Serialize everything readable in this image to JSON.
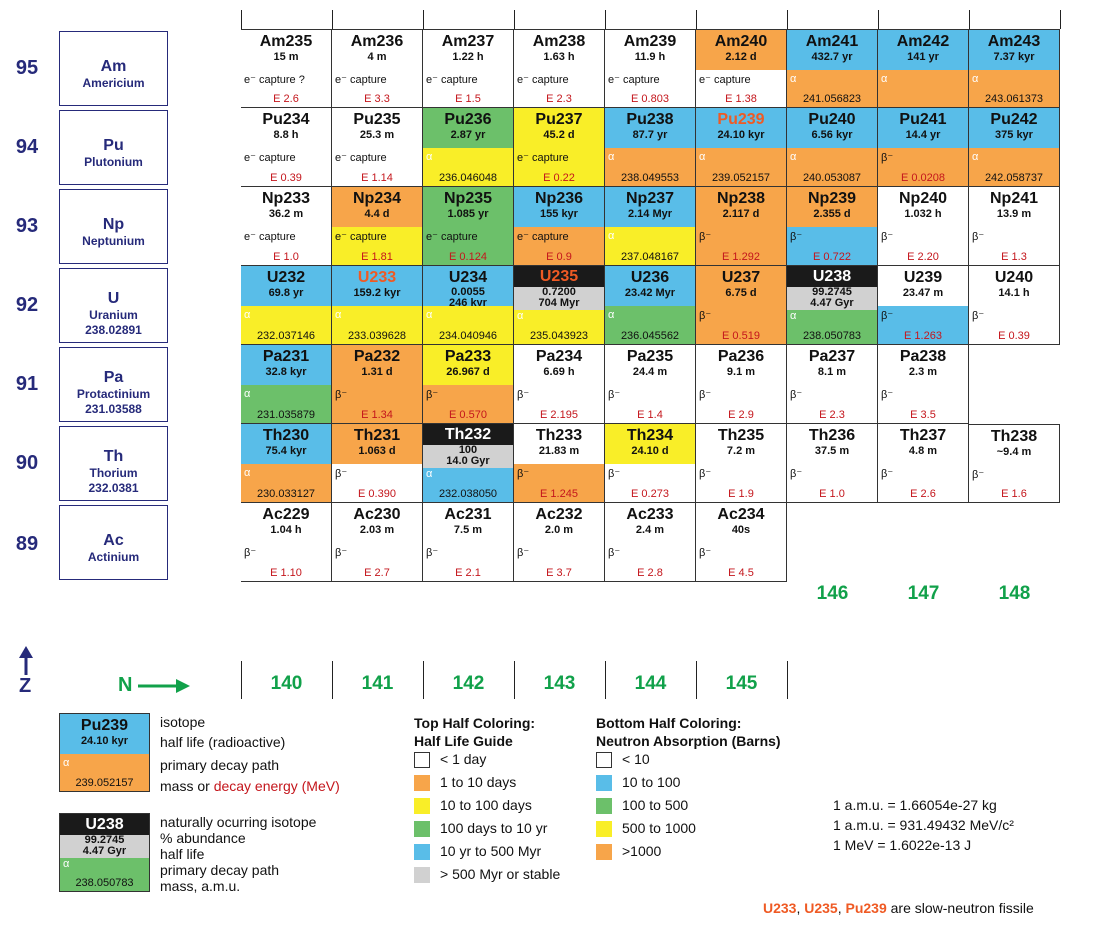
{
  "colors": {
    "white": "#ffffff",
    "orange": "#f7a54a",
    "yellow": "#f9ee28",
    "green": "#6cc06a",
    "blue": "#59bde8",
    "gray": "#d1d1d1",
    "black": "#1a1a1a",
    "fissile": "#ef5a24",
    "energy": "#c4161c",
    "n_label": "#11a14a",
    "element_blue": "#262a7a"
  },
  "axes": {
    "z_label": "Z",
    "n_label": "N"
  },
  "n_values": [
    "140",
    "141",
    "142",
    "143",
    "144",
    "145",
    "146",
    "147",
    "148"
  ],
  "elements": [
    {
      "z": "95",
      "symbol": "Am",
      "name": "Americium",
      "mass": ""
    },
    {
      "z": "94",
      "symbol": "Pu",
      "name": "Plutonium",
      "mass": ""
    },
    {
      "z": "93",
      "symbol": "Np",
      "name": "Neptunium",
      "mass": ""
    },
    {
      "z": "92",
      "symbol": "U",
      "name": "Uranium",
      "mass": "238.02891"
    },
    {
      "z": "91",
      "symbol": "Pa",
      "name": "Protactinium",
      "mass": "231.03588"
    },
    {
      "z": "90",
      "symbol": "Th",
      "name": "Thorium",
      "mass": "232.0381"
    },
    {
      "z": "89",
      "symbol": "Ac",
      "name": "Actinium",
      "mass": ""
    }
  ],
  "rows": [
    [
      {
        "col": 0,
        "name": "Am235",
        "hl": "15 m",
        "top": "white",
        "bot": "white",
        "decay": "e⁻ capture ?",
        "mass": "E 2.6",
        "energy": true
      },
      {
        "col": 1,
        "name": "Am236",
        "hl": "4 m",
        "top": "white",
        "bot": "white",
        "decay": "e⁻ capture",
        "mass": "E 3.3",
        "energy": true
      },
      {
        "col": 2,
        "name": "Am237",
        "hl": "1.22 h",
        "top": "white",
        "bot": "white",
        "decay": "e⁻ capture",
        "mass": "E 1.5",
        "energy": true
      },
      {
        "col": 3,
        "name": "Am238",
        "hl": "1.63 h",
        "top": "white",
        "bot": "white",
        "decay": "e⁻ capture",
        "mass": "E 2.3",
        "energy": true
      },
      {
        "col": 4,
        "name": "Am239",
        "hl": "11.9 h",
        "top": "white",
        "bot": "white",
        "decay": "e⁻ capture",
        "mass": "E 0.803",
        "energy": true
      },
      {
        "col": 5,
        "name": "Am240",
        "hl": "2.12 d",
        "top": "orange",
        "bot": "white",
        "decay": "e⁻ capture",
        "mass": "E 1.38",
        "energy": true
      },
      {
        "col": 6,
        "name": "Am241",
        "hl": "432.7 yr",
        "top": "blue",
        "bot": "orange",
        "decay": "α",
        "mass": "241.056823",
        "energy": false
      },
      {
        "col": 7,
        "name": "Am242",
        "hl": "141 yr",
        "top": "blue",
        "bot": "orange",
        "decay": "α",
        "mass": "",
        "energy": false
      },
      {
        "col": 8,
        "name": "Am243",
        "hl": "7.37 kyr",
        "top": "blue",
        "bot": "orange",
        "decay": "α",
        "mass": "243.061373",
        "energy": false
      }
    ],
    [
      {
        "col": 0,
        "name": "Pu234",
        "hl": "8.8 h",
        "top": "white",
        "bot": "white",
        "decay": "e⁻ capture",
        "mass": "E 0.39",
        "energy": true
      },
      {
        "col": 1,
        "name": "Pu235",
        "hl": "25.3 m",
        "top": "white",
        "bot": "white",
        "decay": "e⁻ capture",
        "mass": "E 1.14",
        "energy": true
      },
      {
        "col": 2,
        "name": "Pu236",
        "hl": "2.87 yr",
        "top": "green",
        "bot": "yellow",
        "decay": "α",
        "mass": "236.046048",
        "energy": false
      },
      {
        "col": 3,
        "name": "Pu237",
        "hl": "45.2 d",
        "top": "yellow",
        "bot": "yellow",
        "decay": "e⁻ capture",
        "mass": "E 0.22",
        "energy": true
      },
      {
        "col": 4,
        "name": "Pu238",
        "hl": "87.7 yr",
        "top": "blue",
        "bot": "orange",
        "decay": "α",
        "mass": "238.049553",
        "energy": false
      },
      {
        "col": 5,
        "name": "Pu239",
        "hl": "24.10 kyr",
        "top": "blue",
        "bot": "orange",
        "decay": "α",
        "mass": "239.052157",
        "energy": false,
        "fissile": true
      },
      {
        "col": 6,
        "name": "Pu240",
        "hl": "6.56 kyr",
        "top": "blue",
        "bot": "orange",
        "decay": "α",
        "mass": "240.053087",
        "energy": false
      },
      {
        "col": 7,
        "name": "Pu241",
        "hl": "14.4 yr",
        "top": "blue",
        "bot": "orange",
        "decay": "β⁻",
        "mass": "E 0.0208",
        "energy": true
      },
      {
        "col": 8,
        "name": "Pu242",
        "hl": "375 kyr",
        "top": "blue",
        "bot": "orange",
        "decay": "α",
        "mass": "242.058737",
        "energy": false
      }
    ],
    [
      {
        "col": 0,
        "name": "Np233",
        "hl": "36.2 m",
        "top": "white",
        "bot": "white",
        "decay": "e⁻ capture",
        "mass": "E 1.0",
        "energy": true
      },
      {
        "col": 1,
        "name": "Np234",
        "hl": "4.4 d",
        "top": "orange",
        "bot": "yellow",
        "decay": "e⁻ capture",
        "mass": "E 1.81",
        "energy": true
      },
      {
        "col": 2,
        "name": "Np235",
        "hl": "1.085 yr",
        "top": "green",
        "bot": "green",
        "decay": "e⁻ capture",
        "mass": "E 0.124",
        "energy": true
      },
      {
        "col": 3,
        "name": "Np236",
        "hl": "155 kyr",
        "top": "blue",
        "bot": "orange",
        "decay": "e⁻ capture",
        "mass": "E 0.9",
        "energy": true
      },
      {
        "col": 4,
        "name": "Np237",
        "hl": "2.14 Myr",
        "top": "blue",
        "bot": "yellow",
        "decay": "α",
        "mass": "237.048167",
        "energy": false
      },
      {
        "col": 5,
        "name": "Np238",
        "hl": "2.117 d",
        "top": "orange",
        "bot": "orange",
        "decay": "β⁻",
        "mass": "E 1.292",
        "energy": true
      },
      {
        "col": 6,
        "name": "Np239",
        "hl": "2.355 d",
        "top": "orange",
        "bot": "blue",
        "decay": "β⁻",
        "mass": "E 0.722",
        "energy": true
      },
      {
        "col": 7,
        "name": "Np240",
        "hl": "1.032 h",
        "top": "white",
        "bot": "white",
        "decay": "β⁻",
        "mass": "E 2.20",
        "energy": true
      },
      {
        "col": 8,
        "name": "Np241",
        "hl": "13.9 m",
        "top": "white",
        "bot": "white",
        "decay": "β⁻",
        "mass": "E 1.3",
        "energy": true
      }
    ],
    [
      {
        "col": 0,
        "name": "U232",
        "hl": "69.8 yr",
        "top": "blue",
        "bot": "yellow",
        "decay": "α",
        "mass": "232.037146",
        "energy": false
      },
      {
        "col": 1,
        "name": "U233",
        "hl": "159.2 kyr",
        "top": "blue",
        "bot": "yellow",
        "decay": "α",
        "mass": "233.039628",
        "energy": false,
        "fissile": true
      },
      {
        "col": 2,
        "name": "U234",
        "hl": "246 kyr",
        "abund": "0.0055",
        "top": "blue",
        "bot": "yellow",
        "decay": "α",
        "mass": "234.040946",
        "energy": false,
        "stackab": true
      },
      {
        "col": 3,
        "name": "U235",
        "hl": "704 Myr",
        "abund": "0.7200",
        "top": "gray",
        "bot": "yellow",
        "decay": "α",
        "mass": "235.043923",
        "energy": false,
        "natural": true,
        "fissile": true
      },
      {
        "col": 4,
        "name": "U236",
        "hl": "23.42 Myr",
        "top": "blue",
        "bot": "green",
        "decay": "α",
        "mass": "236.045562",
        "energy": false
      },
      {
        "col": 5,
        "name": "U237",
        "hl": "6.75 d",
        "top": "orange",
        "bot": "orange",
        "decay": "β⁻",
        "mass": "E 0.519",
        "energy": true
      },
      {
        "col": 6,
        "name": "U238",
        "hl": "4.47 Gyr",
        "abund": "99.2745",
        "top": "gray",
        "bot": "green",
        "decay": "α",
        "mass": "238.050783",
        "energy": false,
        "natural": true
      },
      {
        "col": 7,
        "name": "U239",
        "hl": "23.47 m",
        "top": "white",
        "bot": "blue",
        "decay": "β⁻",
        "mass": "E 1.263",
        "energy": true
      },
      {
        "col": 8,
        "name": "U240",
        "hl": "14.1 h",
        "top": "white",
        "bot": "white",
        "decay": "β⁻",
        "mass": "E 0.39",
        "energy": true
      }
    ],
    [
      {
        "col": 0,
        "name": "Pa231",
        "hl": "32.8 kyr",
        "top": "blue",
        "bot": "green",
        "decay": "α",
        "mass": "231.035879",
        "energy": false
      },
      {
        "col": 1,
        "name": "Pa232",
        "hl": "1.31 d",
        "top": "orange",
        "bot": "orange",
        "decay": "β⁻",
        "mass": "E 1.34",
        "energy": true
      },
      {
        "col": 2,
        "name": "Pa233",
        "hl": "26.967 d",
        "top": "yellow",
        "bot": "orange",
        "decay": "β⁻",
        "mass": "E 0.570",
        "energy": true
      },
      {
        "col": 3,
        "name": "Pa234",
        "hl": "6.69 h",
        "top": "white",
        "bot": "white",
        "decay": "β⁻",
        "mass": "E 2.195",
        "energy": true
      },
      {
        "col": 4,
        "name": "Pa235",
        "hl": "24.4 m",
        "top": "white",
        "bot": "white",
        "decay": "β⁻",
        "mass": "E 1.4",
        "energy": true
      },
      {
        "col": 5,
        "name": "Pa236",
        "hl": "9.1 m",
        "top": "white",
        "bot": "white",
        "decay": "β⁻",
        "mass": "E 2.9",
        "energy": true
      },
      {
        "col": 6,
        "name": "Pa237",
        "hl": "8.1 m",
        "top": "white",
        "bot": "white",
        "decay": "β⁻",
        "mass": "E 2.3",
        "energy": true
      },
      {
        "col": 7,
        "name": "Pa238",
        "hl": "2.3 m",
        "top": "white",
        "bot": "white",
        "decay": "β⁻",
        "mass": "E 3.5",
        "energy": true
      }
    ],
    [
      {
        "col": 0,
        "name": "Th230",
        "hl": "75.4 kyr",
        "top": "blue",
        "bot": "orange",
        "decay": "α",
        "mass": "230.033127",
        "energy": false
      },
      {
        "col": 1,
        "name": "Th231",
        "hl": "1.063 d",
        "top": "orange",
        "bot": "white",
        "decay": "β⁻",
        "mass": "E 0.390",
        "energy": true
      },
      {
        "col": 2,
        "name": "Th232",
        "hl": "14.0 Gyr",
        "abund": "100",
        "top": "gray",
        "bot": "blue",
        "decay": "α",
        "mass": "232.038050",
        "energy": false,
        "natural": true
      },
      {
        "col": 3,
        "name": "Th233",
        "hl": "21.83 m",
        "top": "white",
        "bot": "orange",
        "decay": "β⁻",
        "mass": "E 1.245",
        "energy": true
      },
      {
        "col": 4,
        "name": "Th234",
        "hl": "24.10 d",
        "top": "yellow",
        "bot": "white",
        "decay": "β⁻",
        "mass": "E 0.273",
        "energy": true
      },
      {
        "col": 5,
        "name": "Th235",
        "hl": "7.2 m",
        "top": "white",
        "bot": "white",
        "decay": "β⁻",
        "mass": "E 1.9",
        "energy": true
      },
      {
        "col": 6,
        "name": "Th236",
        "hl": "37.5 m",
        "top": "white",
        "bot": "white",
        "decay": "β⁻",
        "mass": "E 1.0",
        "energy": true
      },
      {
        "col": 7,
        "name": "Th237",
        "hl": "4.8 m",
        "top": "white",
        "bot": "white",
        "decay": "β⁻",
        "mass": "E 2.6",
        "energy": true
      },
      {
        "col": 8,
        "name": "Th238",
        "hl": "~9.4 m",
        "top": "white",
        "bot": "white",
        "decay": "β⁻",
        "mass": "E 1.6",
        "energy": true
      }
    ],
    [
      {
        "col": 0,
        "name": "Ac229",
        "hl": "1.04 h",
        "top": "white",
        "bot": "white",
        "decay": "β⁻",
        "mass": "E 1.10",
        "energy": true
      },
      {
        "col": 1,
        "name": "Ac230",
        "hl": "2.03 m",
        "top": "white",
        "bot": "white",
        "decay": "β⁻",
        "mass": "E 2.7",
        "energy": true
      },
      {
        "col": 2,
        "name": "Ac231",
        "hl": "7.5 m",
        "top": "white",
        "bot": "white",
        "decay": "β⁻",
        "mass": "E 2.1",
        "energy": true
      },
      {
        "col": 3,
        "name": "Ac232",
        "hl": "2.0 m",
        "top": "white",
        "bot": "white",
        "decay": "β⁻",
        "mass": "E 3.7",
        "energy": true
      },
      {
        "col": 4,
        "name": "Ac233",
        "hl": "2.4 m",
        "top": "white",
        "bot": "white",
        "decay": "β⁻",
        "mass": "E 2.8",
        "energy": true
      },
      {
        "col": 5,
        "name": "Ac234",
        "hl": "40s",
        "top": "white",
        "bot": "white",
        "decay": "β⁻",
        "mass": "E 4.5",
        "energy": true
      }
    ]
  ],
  "legend": {
    "sample1": {
      "name": "Pu239",
      "hl": "24.10 kyr",
      "decay": "α",
      "mass": "239.052157"
    },
    "sample1_labels": [
      "isotope",
      "half life (radioactive)",
      "primary decay path"
    ],
    "sample1_mass_label": "mass or ",
    "sample1_energy_label": "decay energy (MeV)",
    "sample2": {
      "name": "U238",
      "abund": "99.2745",
      "hl": "4.47 Gyr",
      "decay": "α",
      "mass": "238.050783"
    },
    "sample2_labels": [
      "naturally ocurring isotope",
      "% abundance",
      "half life",
      "primary decay path",
      "mass, a.m.u."
    ],
    "top_title": [
      "Top Half Coloring:",
      "Half Life Guide"
    ],
    "top_items": [
      "< 1 day",
      "1 to 10 days",
      "10 to 100 days",
      "100 days to 10 yr",
      "10 yr to 500 Myr",
      "> 500 Myr or stable"
    ],
    "bottom_title": [
      "Bottom Half Coloring:",
      "Neutron Absorption (Barns)"
    ],
    "bottom_items": [
      "< 10",
      "10 to 100",
      "100 to 500",
      "500 to 1000",
      ">1000"
    ],
    "constants": [
      "1 a.m.u. = 1.66054e-27 kg",
      "1 a.m.u. = 931.49432 MeV/c²",
      "1 MeV = 1.6022e-13 J"
    ],
    "fissile": {
      "u233": "U233",
      ",": ", ",
      "u235": "U235",
      "pu239": "Pu239",
      "rest": " are slow-neutron fissile"
    }
  }
}
